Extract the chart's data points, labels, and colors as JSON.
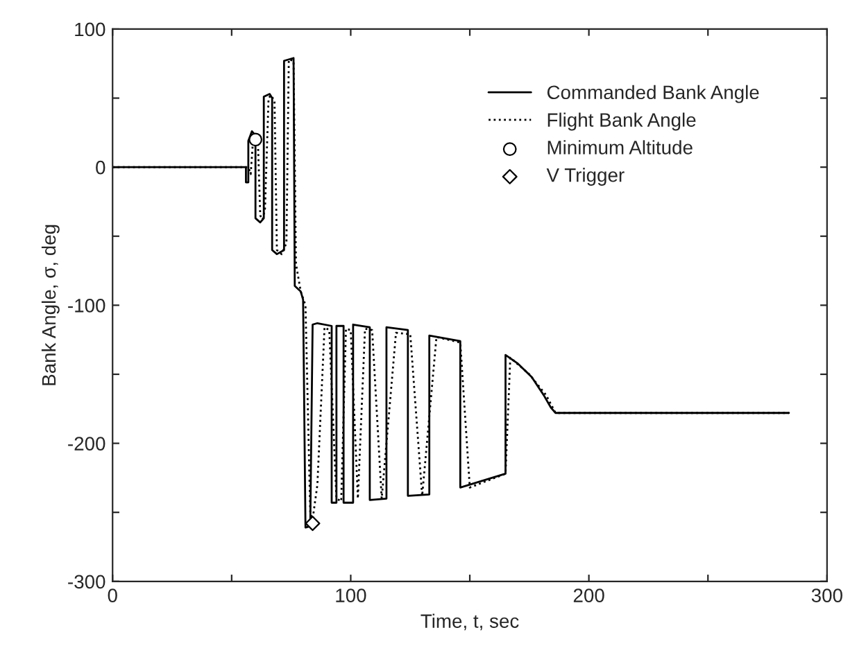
{
  "chart_data": {
    "type": "line",
    "xlabel": "Time, t, sec",
    "ylabel": "Bank Angle, σ, deg",
    "xlim": [
      0,
      300
    ],
    "xticks": [
      0,
      {
        "value": 50,
        "label": null
      },
      100,
      {
        "value": 150,
        "label": null
      },
      200,
      {
        "value": 250,
        "label": null
      },
      300
    ],
    "ylim": [
      -300,
      100
    ],
    "yticks": [
      -300,
      {
        "value": -250,
        "label": null
      },
      -200,
      {
        "value": -150,
        "label": null
      },
      -100,
      {
        "value": -50,
        "label": null
      },
      0,
      {
        "value": 50,
        "label": null
      },
      100
    ],
    "grid": false,
    "legend": "top right",
    "series": [
      {
        "name": "Commanded Bank Angle",
        "line_style": "solid",
        "color": "#000000",
        "x": [
          0,
          56,
          56,
          57,
          57,
          58.5,
          60,
          60,
          62,
          63.5,
          63.5,
          66,
          67,
          67,
          69,
          72,
          72,
          76,
          76.5,
          79,
          80,
          81,
          83,
          84,
          86,
          92,
          92,
          94,
          94,
          97,
          97,
          101,
          101,
          108,
          108,
          115,
          115,
          124,
          124,
          133,
          133,
          146,
          146,
          165,
          165,
          170,
          176,
          181,
          184,
          186,
          284
        ],
        "values": [
          0,
          0,
          -11,
          -11,
          19,
          26,
          23,
          -37,
          -40,
          -37,
          51,
          53,
          50,
          -60,
          -63,
          -60,
          77,
          79,
          -86,
          -90,
          -96,
          -261,
          -260,
          -114,
          -113,
          -115,
          -243,
          -243,
          -115,
          -115,
          -243,
          -243,
          -114,
          -116,
          -241,
          -240,
          -116,
          -118,
          -238,
          -237,
          -122,
          -126,
          -232,
          -222,
          -136,
          -142,
          -152,
          -165,
          -174,
          -178,
          -178
        ]
      },
      {
        "name": "Flight Bank Angle",
        "line_style": "dotted",
        "color": "#000000",
        "x": [
          0,
          57,
          58,
          59,
          60,
          61,
          62,
          63,
          64,
          65.5,
          66.5,
          68,
          69,
          71,
          73,
          74,
          76,
          77,
          79,
          81,
          83,
          84,
          86,
          89,
          91,
          94,
          96,
          98,
          100,
          103,
          106,
          109,
          113,
          119,
          125,
          130,
          136,
          146,
          150,
          165,
          167,
          175,
          182,
          186,
          284
        ],
        "values": [
          0,
          0,
          -5,
          20,
          24,
          20,
          -35,
          -38,
          -30,
          50,
          52,
          48,
          -60,
          -63,
          -55,
          78,
          77,
          -70,
          -90,
          -100,
          -250,
          -255,
          -230,
          -116,
          -118,
          -240,
          -242,
          -117,
          -118,
          -240,
          -117,
          -118,
          -240,
          -120,
          -121,
          -238,
          -123,
          -127,
          -232,
          -222,
          -138,
          -150,
          -165,
          -178,
          -178
        ]
      },
      {
        "name": "Minimum Altitude",
        "type": "scatter",
        "marker": "circle",
        "color": "#000000",
        "x": [
          60
        ],
        "values": [
          20
        ]
      },
      {
        "name": "V Trigger",
        "type": "scatter",
        "marker": "diamond",
        "color": "#000000",
        "x": [
          84
        ],
        "values": [
          -258
        ]
      }
    ]
  }
}
